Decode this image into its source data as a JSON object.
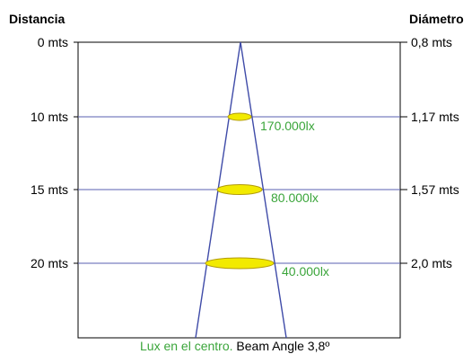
{
  "headers": {
    "distance": "Distancia",
    "diameter": "Diámetro"
  },
  "rows": [
    {
      "distance": "0 mts",
      "diameter": "0,8 mts",
      "lux": ""
    },
    {
      "distance": "10 mts",
      "diameter": "1,17 mts",
      "lux": "170.000lx"
    },
    {
      "distance": "15 mts",
      "diameter": "1,57 mts",
      "lux": "80.000lx"
    },
    {
      "distance": "20 mts",
      "diameter": "2,0 mts",
      "lux": "40.000lx"
    }
  ],
  "caption": {
    "green": "Lux en el centro.",
    "black": " Beam Angle 3,8º"
  },
  "colors": {
    "box": "#000000",
    "row_line": "#5a5fb0",
    "beam": "#3f4ba8",
    "spot_fill": "#f2ea00",
    "spot_stroke": "#b19a0a",
    "lux_text": "#3aa53a",
    "text": "#000000"
  }
}
